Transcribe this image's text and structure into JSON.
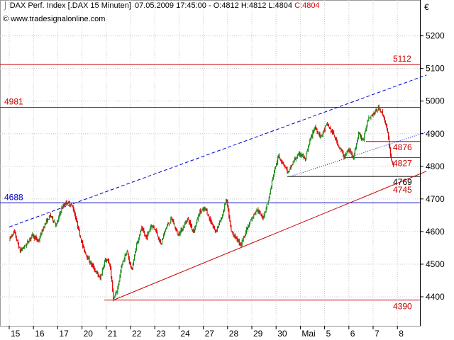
{
  "header": {
    "instrument": "DAX Perf. Index [.DAX  15 Minuten]",
    "datetime": "07.05.2009 17:45:00",
    "ohl": "- O:4812 H:4812 L:4804",
    "close": "C:4804",
    "source": "www.tradesignalonline.com",
    "currency": "€",
    "icon": "chart-icon"
  },
  "colors": {
    "up": "#1a8a1a",
    "down": "#e00000",
    "resistance": "#cc0000",
    "support_blue": "#0000cc",
    "channel_top": "#0000cc"
  },
  "chart_data": {
    "type": "candlestick",
    "title": "DAX Perf. Index [.DAX  15 Minuten]",
    "ylim": [
      4350,
      5300
    ],
    "y_ticks": [
      4400,
      4500,
      4600,
      4700,
      4800,
      4900,
      5000,
      5100,
      5200
    ],
    "x_ticks": [
      "15",
      "16",
      "17",
      "20",
      "21",
      "22",
      "23",
      "24",
      "27",
      "28",
      "29",
      "30",
      "Mai",
      "5",
      "6",
      "7",
      "8"
    ],
    "grid": true,
    "horizontal_levels": [
      {
        "value": 5112,
        "label": "5112",
        "color": "red"
      },
      {
        "value": 4981,
        "label": "4981",
        "color": "red"
      },
      {
        "value": 4876,
        "label": "4876",
        "color": "red"
      },
      {
        "value": 4827,
        "label": "4827",
        "color": "red"
      },
      {
        "value": 4769,
        "label": "4769",
        "color": "black"
      },
      {
        "value": 4745,
        "label": "4745",
        "color": "red"
      },
      {
        "value": 4688,
        "label": "4688",
        "color": "blue"
      },
      {
        "value": 4390,
        "label": "4390",
        "color": "red"
      }
    ],
    "trendlines": [
      {
        "name": "lower channel",
        "from": [
          4.3,
          4390
        ],
        "to": [
          17.2,
          4785
        ],
        "style": "solid",
        "color": "red"
      },
      {
        "name": "upper channel",
        "from": [
          0.0,
          4614
        ],
        "to": [
          17.2,
          5080
        ],
        "style": "dashed",
        "color": "blue"
      },
      {
        "name": "short-term support",
        "from": [
          11.6,
          4769
        ],
        "to": [
          17.2,
          4905
        ],
        "style": "dotted",
        "color": "blue"
      }
    ],
    "price_path": [
      [
        0.0,
        4575
      ],
      [
        0.2,
        4600
      ],
      [
        0.45,
        4540
      ],
      [
        0.7,
        4560
      ],
      [
        0.95,
        4590
      ],
      [
        1.2,
        4570
      ],
      [
        1.45,
        4620
      ],
      [
        1.7,
        4650
      ],
      [
        1.95,
        4620
      ],
      [
        2.15,
        4670
      ],
      [
        2.35,
        4690
      ],
      [
        2.6,
        4680
      ],
      [
        2.85,
        4610
      ],
      [
        3.05,
        4550
      ],
      [
        3.3,
        4510
      ],
      [
        3.55,
        4480
      ],
      [
        3.75,
        4455
      ],
      [
        3.95,
        4515
      ],
      [
        4.15,
        4500
      ],
      [
        4.3,
        4390
      ],
      [
        4.45,
        4420
      ],
      [
        4.65,
        4500
      ],
      [
        4.85,
        4540
      ],
      [
        5.05,
        4480
      ],
      [
        5.25,
        4560
      ],
      [
        5.45,
        4610
      ],
      [
        5.65,
        4580
      ],
      [
        5.85,
        4620
      ],
      [
        6.05,
        4605
      ],
      [
        6.25,
        4560
      ],
      [
        6.45,
        4610
      ],
      [
        6.7,
        4640
      ],
      [
        6.95,
        4590
      ],
      [
        7.15,
        4610
      ],
      [
        7.35,
        4640
      ],
      [
        7.6,
        4600
      ],
      [
        7.85,
        4660
      ],
      [
        8.1,
        4670
      ],
      [
        8.25,
        4640
      ],
      [
        8.5,
        4600
      ],
      [
        8.75,
        4640
      ],
      [
        8.95,
        4700
      ],
      [
        9.15,
        4600
      ],
      [
        9.35,
        4580
      ],
      [
        9.55,
        4560
      ],
      [
        9.75,
        4600
      ],
      [
        9.95,
        4630
      ],
      [
        10.2,
        4670
      ],
      [
        10.45,
        4640
      ],
      [
        10.7,
        4700
      ],
      [
        10.9,
        4780
      ],
      [
        11.1,
        4830
      ],
      [
        11.3,
        4810
      ],
      [
        11.5,
        4780
      ],
      [
        11.75,
        4820
      ],
      [
        12.0,
        4840
      ],
      [
        12.2,
        4820
      ],
      [
        12.4,
        4880
      ],
      [
        12.6,
        4920
      ],
      [
        12.85,
        4890
      ],
      [
        13.1,
        4930
      ],
      [
        13.35,
        4900
      ],
      [
        13.6,
        4860
      ],
      [
        13.8,
        4830
      ],
      [
        14.0,
        4850
      ],
      [
        14.2,
        4830
      ],
      [
        14.4,
        4900
      ],
      [
        14.6,
        4880
      ],
      [
        14.8,
        4950
      ],
      [
        15.0,
        4960
      ],
      [
        15.25,
        4980
      ],
      [
        15.45,
        4950
      ],
      [
        15.6,
        4900
      ],
      [
        15.75,
        4820
      ],
      [
        15.85,
        4804
      ]
    ]
  }
}
